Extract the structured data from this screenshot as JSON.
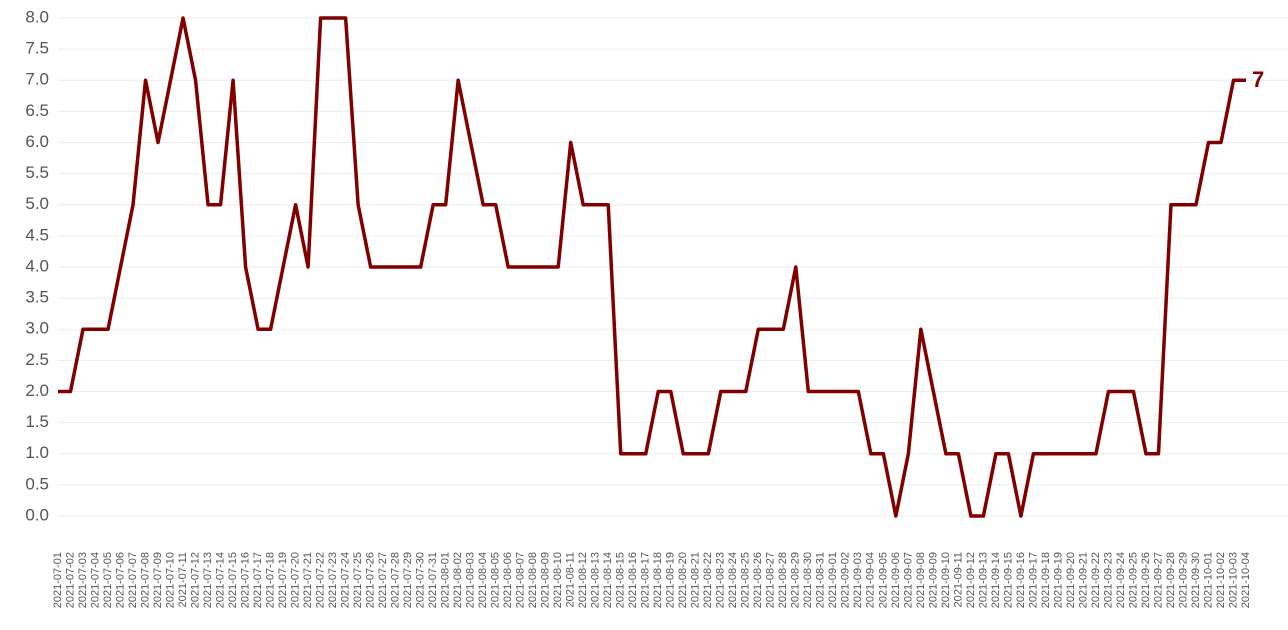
{
  "chart_data": {
    "type": "line",
    "categories": [
      "2021-07-01",
      "2021-07-02",
      "2021-07-03",
      "2021-07-04",
      "2021-07-05",
      "2021-07-06",
      "2021-07-07",
      "2021-07-08",
      "2021-07-09",
      "2021-07-10",
      "2021-07-11",
      "2021-07-12",
      "2021-07-13",
      "2021-07-14",
      "2021-07-15",
      "2021-07-16",
      "2021-07-17",
      "2021-07-18",
      "2021-07-19",
      "2021-07-20",
      "2021-07-21",
      "2021-07-22",
      "2021-07-23",
      "2021-07-24",
      "2021-07-25",
      "2021-07-26",
      "2021-07-27",
      "2021-07-28",
      "2021-07-29",
      "2021-07-30",
      "2021-07-31",
      "2021-08-01",
      "2021-08-02",
      "2021-08-03",
      "2021-08-04",
      "2021-08-05",
      "2021-08-06",
      "2021-08-07",
      "2021-08-08",
      "2021-08-09",
      "2021-08-10",
      "2021-08-11",
      "2021-08-12",
      "2021-08-13",
      "2021-08-14",
      "2021-08-15",
      "2021-08-16",
      "2021-08-17",
      "2021-08-18",
      "2021-08-19",
      "2021-08-20",
      "2021-08-21",
      "2021-08-22",
      "2021-08-23",
      "2021-08-24",
      "2021-08-25",
      "2021-08-26",
      "2021-08-27",
      "2021-08-28",
      "2021-08-29",
      "2021-08-30",
      "2021-08-31",
      "2021-09-01",
      "2021-09-02",
      "2021-09-03",
      "2021-09-04",
      "2021-09-05",
      "2021-09-06",
      "2021-09-07",
      "2021-09-08",
      "2021-09-09",
      "2021-09-10",
      "2021-09-11",
      "2021-09-12",
      "2021-09-13",
      "2021-09-14",
      "2021-09-15",
      "2021-09-16",
      "2021-09-17",
      "2021-09-18",
      "2021-09-19",
      "2021-09-20",
      "2021-09-21",
      "2021-09-22",
      "2021-09-23",
      "2021-09-24",
      "2021-09-25",
      "2021-09-26",
      "2021-09-27",
      "2021-09-28",
      "2021-09-29",
      "2021-09-30",
      "2021-10-01",
      "2021-10-02",
      "2021-10-03",
      "2021-10-04"
    ],
    "values": [
      2,
      2,
      3,
      3,
      3,
      4,
      5,
      7,
      6,
      7,
      8,
      7,
      5,
      5,
      7,
      4,
      3,
      3,
      4,
      5,
      4,
      8,
      8,
      8,
      5,
      4,
      4,
      4,
      4,
      4,
      5,
      5,
      7,
      6,
      5,
      5,
      4,
      4,
      4,
      4,
      4,
      6,
      5,
      5,
      5,
      1,
      1,
      1,
      2,
      2,
      1,
      1,
      1,
      2,
      2,
      2,
      3,
      3,
      3,
      4,
      2,
      2,
      2,
      2,
      2,
      1,
      1,
      0,
      1,
      3,
      2,
      1,
      1,
      0,
      0,
      1,
      1,
      0,
      1,
      1,
      1,
      1,
      1,
      1,
      2,
      2,
      2,
      1,
      1,
      5,
      5,
      5,
      6,
      6,
      7,
      7
    ],
    "color": "#800000",
    "ylim": [
      0,
      8
    ],
    "yticks": [
      {
        "value": 0,
        "label": "0.0"
      },
      0.5,
      {
        "value": 1,
        "label": "1.0"
      },
      1.5,
      {
        "value": 2,
        "label": "2.0"
      },
      2.5,
      {
        "value": 3,
        "label": "3.0"
      },
      3.5,
      {
        "value": 4,
        "label": "4.0"
      },
      4.5,
      {
        "value": 5,
        "label": "5.0"
      },
      5.5,
      {
        "value": 6,
        "label": "6.0"
      },
      6.5,
      {
        "value": 7,
        "label": "7.0"
      },
      7.5,
      {
        "value": 8,
        "label": "8.0"
      }
    ],
    "grid": true
  }
}
